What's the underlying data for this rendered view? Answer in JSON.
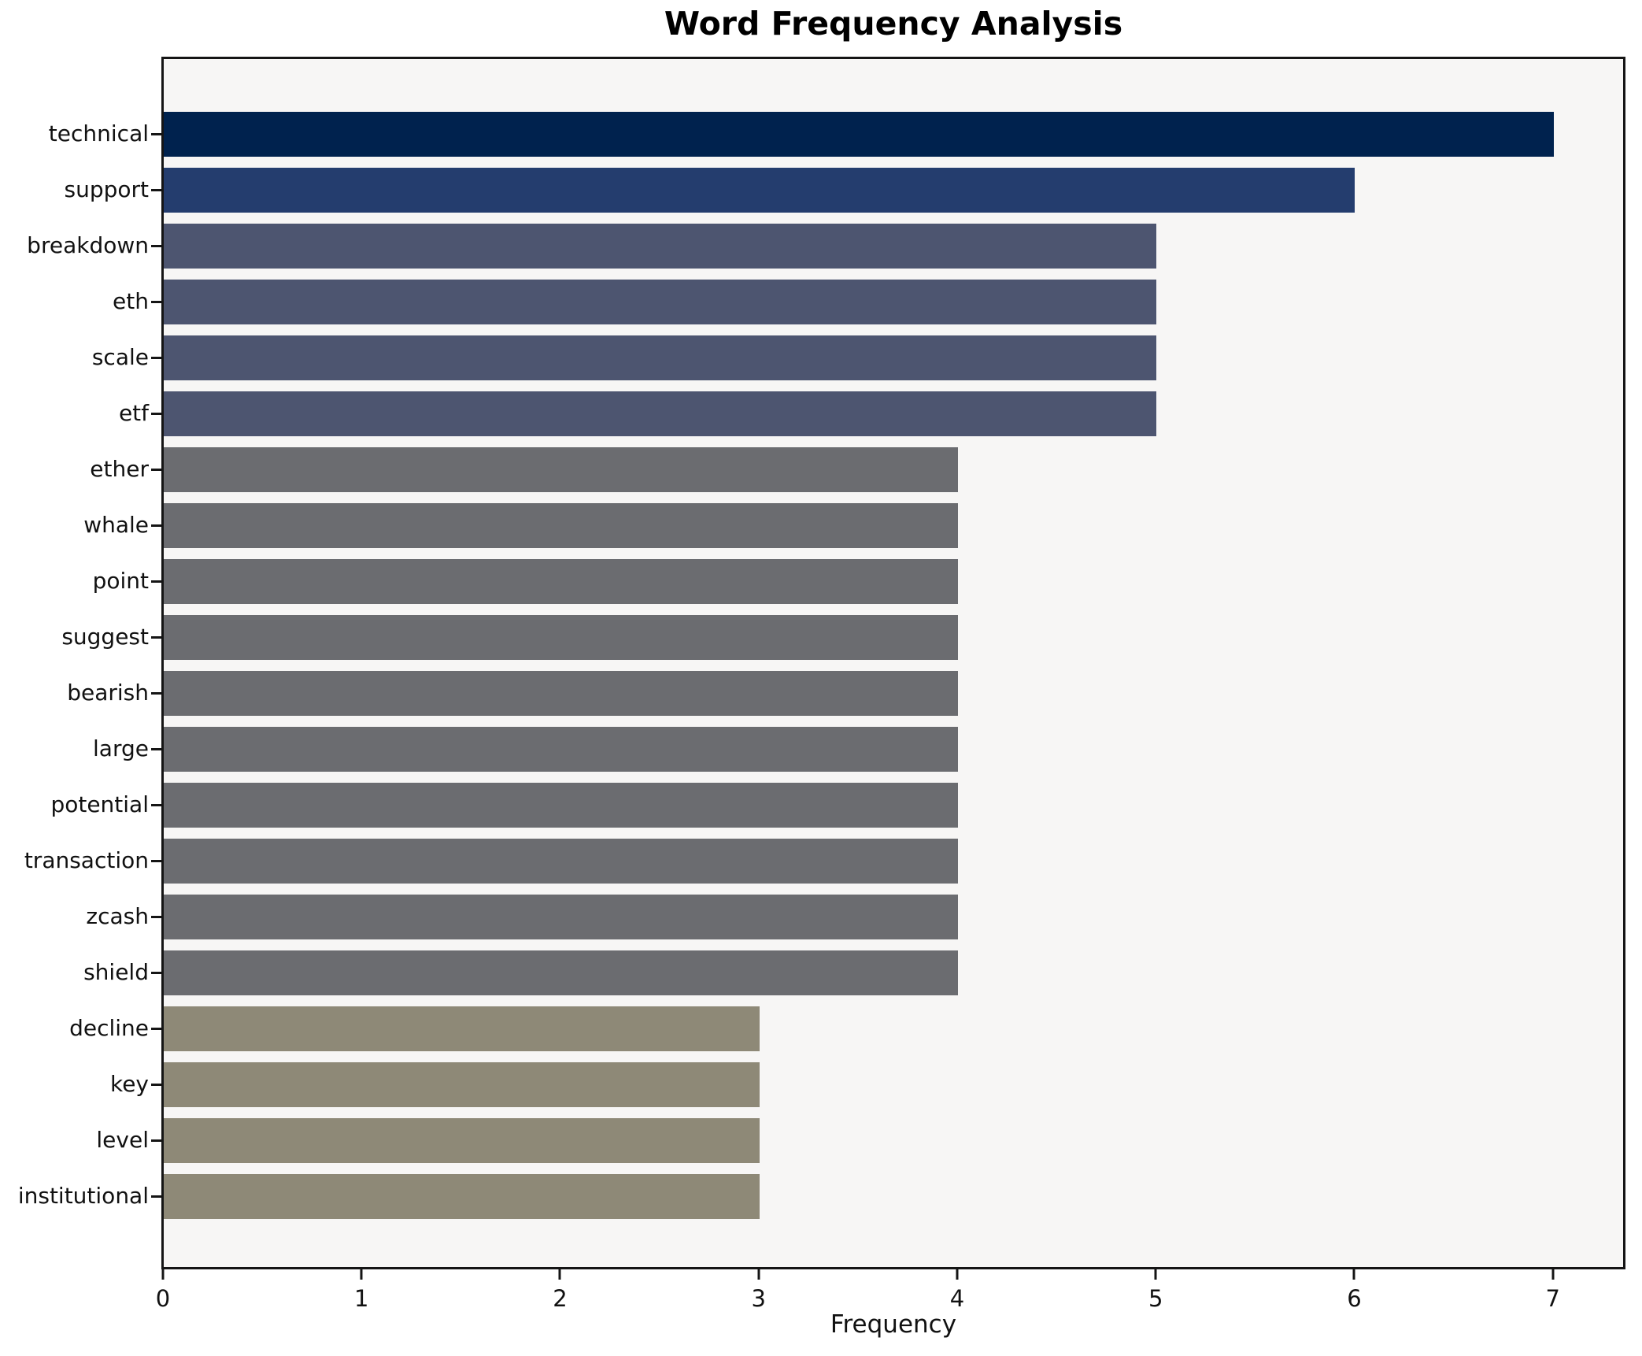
{
  "title": "Word Frequency Analysis",
  "chart_data": {
    "type": "bar",
    "orientation": "horizontal",
    "title": "Word Frequency Analysis",
    "xlabel": "Frequency",
    "ylabel": "",
    "grid": false,
    "legend": false,
    "xlim": [
      0,
      7.35
    ],
    "x_ticks": [
      0,
      1,
      2,
      3,
      4,
      5,
      6,
      7
    ],
    "categories": [
      "technical",
      "support",
      "breakdown",
      "eth",
      "scale",
      "etf",
      "ether",
      "whale",
      "point",
      "suggest",
      "bearish",
      "large",
      "potential",
      "transaction",
      "zcash",
      "shield",
      "decline",
      "key",
      "level",
      "institutional"
    ],
    "values": [
      7,
      6,
      5,
      5,
      5,
      5,
      4,
      4,
      4,
      4,
      4,
      4,
      4,
      4,
      4,
      4,
      3,
      3,
      3,
      3
    ],
    "colors": [
      "#00224e",
      "#243d6e",
      "#4d5570",
      "#4d5570",
      "#4d5570",
      "#4d5570",
      "#6b6c70",
      "#6b6c70",
      "#6b6c70",
      "#6b6c70",
      "#6b6c70",
      "#6b6c70",
      "#6b6c70",
      "#6b6c70",
      "#6b6c70",
      "#6b6c70",
      "#8e8977",
      "#8e8977",
      "#8e8977",
      "#8e8977"
    ],
    "color_by_value": {
      "7": "#00224e",
      "6": "#243d6e",
      "5": "#4d5570",
      "4": "#6b6c70",
      "3": "#8e8977"
    }
  },
  "style": {
    "figure_bg": "#ffffff",
    "plot_bg": "#f7f6f5",
    "spine_color": "#151515",
    "text_color": "#111111"
  }
}
